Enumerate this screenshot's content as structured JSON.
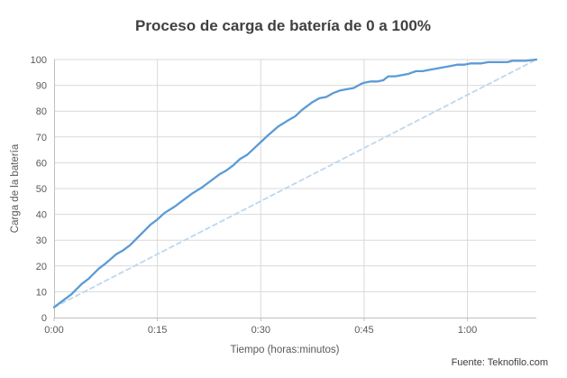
{
  "chart_data": {
    "type": "line",
    "title": "Proceso de carga de batería de 0 a 100%",
    "xlabel": "Tiempo (horas:minutos)",
    "ylabel": "Carga de la batería",
    "source": "Fuente: Teknofilo.com",
    "xlim_minutes": [
      0,
      70
    ],
    "ylim": [
      0,
      100
    ],
    "y_ticks": [
      0,
      10,
      20,
      30,
      40,
      50,
      60,
      70,
      80,
      90,
      100
    ],
    "x_ticks": [
      {
        "minutes": 0,
        "label": "0:00"
      },
      {
        "minutes": 15,
        "label": "0:15"
      },
      {
        "minutes": 30,
        "label": "0:30"
      },
      {
        "minutes": 45,
        "label": "0:45"
      },
      {
        "minutes": 60,
        "label": "1:00"
      }
    ],
    "grid": true,
    "legend": "none",
    "colors": {
      "title_text": "#404040",
      "axis_text": "#595959",
      "gridline": "#D9D9D9",
      "axis_line": "#BFBFBF",
      "solid_series": "#5B9BD5",
      "dashed_series": "#BDD7EE",
      "background": "#FFFFFF"
    },
    "series": [
      {
        "name": "carga-real",
        "style": "solid",
        "color": "#5B9BD5",
        "stroke_width": 2.3,
        "points": [
          [
            0,
            4
          ],
          [
            1,
            6
          ],
          [
            2.5,
            9
          ],
          [
            4,
            13
          ],
          [
            5,
            15
          ],
          [
            6.5,
            19
          ],
          [
            7.5,
            21
          ],
          [
            9,
            24.5
          ],
          [
            10,
            26
          ],
          [
            11,
            28
          ],
          [
            12.5,
            32
          ],
          [
            14,
            36
          ],
          [
            15,
            38
          ],
          [
            16,
            40.5
          ],
          [
            17.5,
            43
          ],
          [
            19,
            46
          ],
          [
            20,
            48
          ],
          [
            21.5,
            50.5
          ],
          [
            23,
            53.5
          ],
          [
            24,
            55.5
          ],
          [
            25,
            57
          ],
          [
            26,
            59
          ],
          [
            27,
            61.5
          ],
          [
            28,
            63
          ],
          [
            29,
            65.5
          ],
          [
            30,
            68
          ],
          [
            31,
            70.5
          ],
          [
            32.5,
            74
          ],
          [
            34,
            76.5
          ],
          [
            35,
            78
          ],
          [
            36,
            80.5
          ],
          [
            37.5,
            83.5
          ],
          [
            38.5,
            85
          ],
          [
            39.5,
            85.5
          ],
          [
            40.5,
            87
          ],
          [
            41.5,
            88
          ],
          [
            42.5,
            88.5
          ],
          [
            43.5,
            89
          ],
          [
            44.5,
            90.5
          ],
          [
            45,
            91
          ],
          [
            46,
            91.5
          ],
          [
            47,
            91.5
          ],
          [
            47.8,
            92
          ],
          [
            48.5,
            93.5
          ],
          [
            49.5,
            93.5
          ],
          [
            50.5,
            94
          ],
          [
            51.5,
            94.5
          ],
          [
            52.5,
            95.5
          ],
          [
            53.5,
            95.5
          ],
          [
            54.5,
            96
          ],
          [
            55.5,
            96.5
          ],
          [
            56.5,
            97
          ],
          [
            57.5,
            97.5
          ],
          [
            58.5,
            98
          ],
          [
            59.5,
            98
          ],
          [
            60.5,
            98.5
          ],
          [
            62,
            98.5
          ],
          [
            63,
            99
          ],
          [
            65,
            99
          ],
          [
            65.8,
            99
          ],
          [
            66.5,
            99.5
          ],
          [
            68.5,
            99.5
          ],
          [
            69.3,
            99.8
          ],
          [
            70,
            100
          ]
        ]
      },
      {
        "name": "referencia-lineal",
        "style": "dashed",
        "color": "#BDD7EE",
        "stroke_width": 1.8,
        "points": [
          [
            0,
            4
          ],
          [
            70,
            100
          ]
        ]
      }
    ]
  }
}
